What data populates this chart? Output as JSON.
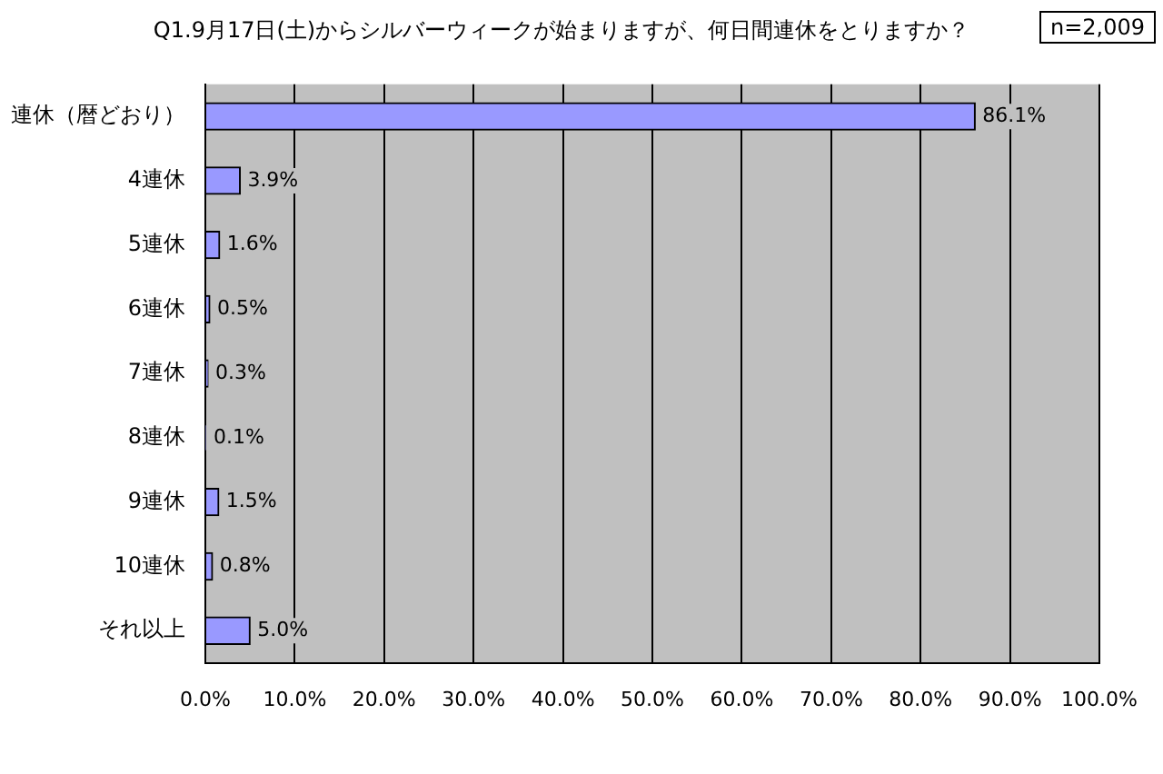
{
  "chart_data": {
    "type": "bar",
    "orientation": "horizontal",
    "title": "Q1.9月17日(土)からシルバーウィークが始まりますが、何日間連休をとりますか？",
    "annotations": [
      "n=2,009"
    ],
    "categories": [
      "連休（暦どおり）",
      "4連休",
      "5連休",
      "6連休",
      "7連休",
      "8連休",
      "9連休",
      "10連休",
      "それ以上"
    ],
    "values": [
      86.1,
      3.9,
      1.6,
      0.5,
      0.3,
      0.1,
      1.5,
      0.8,
      5.0
    ],
    "value_labels": [
      "86.1%",
      "3.9%",
      "1.6%",
      "0.5%",
      "0.3%",
      "0.1%",
      "1.5%",
      "0.8%",
      "5.0%"
    ],
    "color": "#9999ff",
    "xlim": [
      0,
      100
    ],
    "xticks": [
      {
        "value": 0,
        "label": "0.0%"
      },
      {
        "value": 10,
        "label": "10.0%"
      },
      {
        "value": 20,
        "label": "20.0%"
      },
      {
        "value": 30,
        "label": "30.0%"
      },
      {
        "value": 40,
        "label": "40.0%"
      },
      {
        "value": 50,
        "label": "50.0%"
      },
      {
        "value": 60,
        "label": "60.0%"
      },
      {
        "value": 70,
        "label": "70.0%"
      },
      {
        "value": 80,
        "label": "80.0%"
      },
      {
        "value": 90,
        "label": "90.0%"
      },
      {
        "value": 100,
        "label": "100.0%"
      }
    ],
    "grid": "x"
  }
}
